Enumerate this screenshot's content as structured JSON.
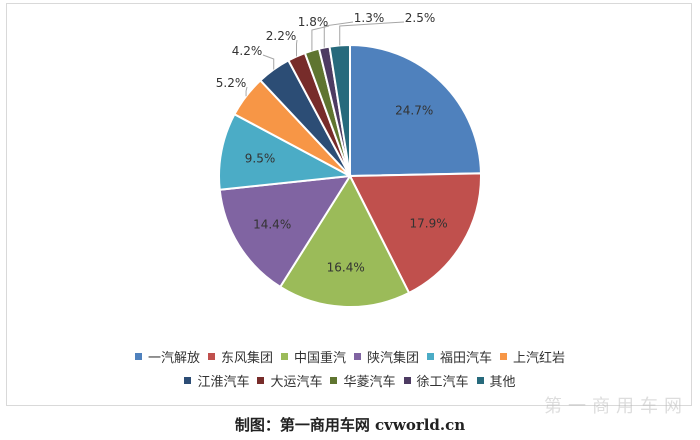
{
  "chart_data": {
    "type": "pie",
    "series": [
      {
        "name": "一汽解放",
        "value": 24.7,
        "label": "24.7%",
        "color": "#4f81bd"
      },
      {
        "name": "东风集团",
        "value": 17.9,
        "label": "17.9%",
        "color": "#c0504d"
      },
      {
        "name": "中国重汽",
        "value": 16.4,
        "label": "16.4%",
        "color": "#9bbb59"
      },
      {
        "name": "陕汽集团",
        "value": 14.4,
        "label": "14.4%",
        "color": "#8064a2"
      },
      {
        "name": "福田汽车",
        "value": 9.5,
        "label": "9.5%",
        "color": "#4bacc6"
      },
      {
        "name": "上汽红岩",
        "value": 5.2,
        "label": "5.2%",
        "color": "#f79646"
      },
      {
        "name": "江淮汽车",
        "value": 4.2,
        "label": "4.2%",
        "color": "#2c4d75"
      },
      {
        "name": "大运汽车",
        "value": 2.2,
        "label": "2.2%",
        "color": "#772c2a"
      },
      {
        "name": "华菱汽车",
        "value": 1.8,
        "label": "1.8%",
        "color": "#5f7530"
      },
      {
        "name": "徐工汽车",
        "value": 1.3,
        "label": "1.3%",
        "color": "#4d3b62"
      },
      {
        "name": "其他",
        "value": 2.5,
        "label": "2.5%",
        "color": "#276a7c"
      }
    ],
    "legend_position": "bottom",
    "start_angle": "12 o'clock",
    "direction": "clockwise"
  },
  "caption": "制图：第一商用车网 cvworld.cn",
  "watermark": "第一商用车网"
}
